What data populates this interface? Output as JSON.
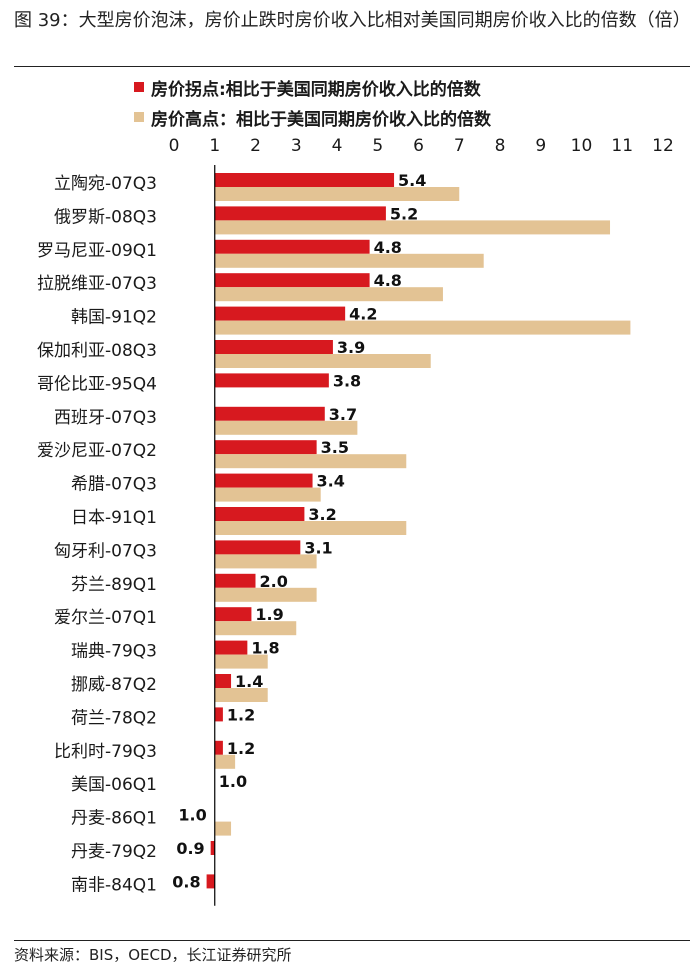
{
  "figure": {
    "title": "图 39：大型房价泡沫，房价止跌时房价收入比相对美国同期房价收入比的倍数（倍）",
    "source": "资料来源：BIS，OECD，长江证券研究所"
  },
  "colors": {
    "series_peak_turn": "#d7191f",
    "series_high": "#e3c394",
    "axis": "#000000",
    "text": "#1a1a1a"
  },
  "chart_data": {
    "type": "bar",
    "orientation": "horizontal",
    "title": "",
    "xlabel": "",
    "ylabel": "",
    "xlim": [
      0,
      12
    ],
    "x_ticks": [
      "0",
      "1",
      "2",
      "3",
      "4",
      "5",
      "6",
      "7",
      "8",
      "9",
      "10",
      "11",
      "12"
    ],
    "baseline": 1,
    "grid": false,
    "legend_position": "top",
    "categories": [
      "立陶宛-07Q3",
      "俄罗斯-08Q3",
      "罗马尼亚-09Q1",
      "拉脱维亚-07Q3",
      "韩国-91Q2",
      "保加利亚-08Q3",
      "哥伦比亚-95Q4",
      "西班牙-07Q3",
      "爱沙尼亚-07Q2",
      "希腊-07Q3",
      "日本-91Q1",
      "匈牙利-07Q3",
      "芬兰-89Q1",
      "爱尔兰-07Q1",
      "瑞典-79Q3",
      "挪威-87Q2",
      "荷兰-78Q2",
      "比利时-79Q3",
      "美国-06Q1",
      "丹麦-86Q1",
      "丹麦-79Q2",
      "南非-84Q1"
    ],
    "series": [
      {
        "name": "房价拐点:相比于美国同期房价收入比的倍数",
        "color": "#d7191f",
        "values": [
          5.4,
          5.2,
          4.8,
          4.8,
          4.2,
          3.9,
          3.8,
          3.7,
          3.5,
          3.4,
          3.2,
          3.1,
          2.0,
          1.9,
          1.8,
          1.4,
          1.2,
          1.2,
          1.0,
          1.0,
          0.9,
          0.8
        ],
        "data_labels": [
          "5.4",
          "5.2",
          "4.8",
          "4.8",
          "4.2",
          "3.9",
          "3.8",
          "3.7",
          "3.5",
          "3.4",
          "3.2",
          "3.1",
          "2.0",
          "1.9",
          "1.8",
          "1.4",
          "1.2",
          "1.2",
          "1.0",
          "1.0",
          "0.9",
          "0.8"
        ]
      },
      {
        "name": "房价高点：相比于美国同期房价收入比的倍数",
        "color": "#e3c394",
        "values": [
          7.0,
          10.7,
          7.6,
          6.6,
          11.2,
          6.3,
          null,
          4.5,
          5.7,
          3.6,
          5.7,
          3.5,
          3.5,
          3.0,
          2.3,
          2.3,
          null,
          1.5,
          null,
          1.4,
          null,
          null
        ]
      }
    ]
  }
}
